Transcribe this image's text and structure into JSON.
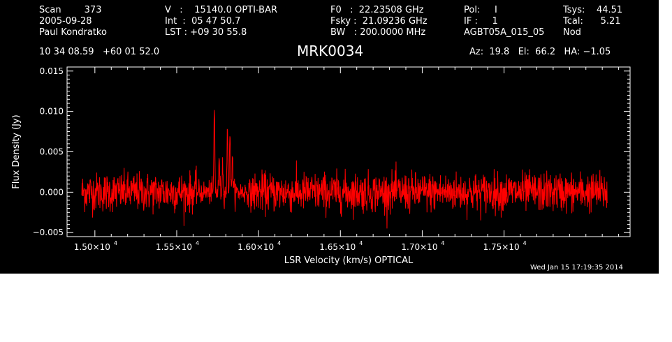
{
  "header": {
    "row1": [
      "Scan        373",
      "V   :    15140.0 OPTI-BAR",
      "F0   :  22.23508 GHz",
      "Pol:     I",
      "Tsys:    44.51"
    ],
    "row2": [
      "2005-09-28",
      "Int  :  05 47 50.7",
      "Fsky :  21.09236 GHz",
      "IF :     1",
      "Tcal:      5.21"
    ],
    "row3": [
      "Paul Kondratko",
      "LST : +09 30 55.8",
      "BW   : 200.0000 MHz",
      "AGBT05A_015_05",
      "Nod"
    ],
    "coords": "10 34 08.59   +60 01 52.0",
    "source": "MRK0034",
    "pointing": "Az:  19.8   El:  66.2   HA: −1.05"
  },
  "footer": {
    "timestamp": "Wed Jan 15 17:19:35 2014"
  },
  "colors": {
    "background": "#000000",
    "axes": "#ffffff",
    "series": "#ff0000"
  },
  "chart_data": {
    "type": "line",
    "title": "MRK0034",
    "xlabel": "LSR Velocity (km/s) OPTICAL",
    "ylabel": "Flux Density (Jy)",
    "xlim": [
      14830,
      18270
    ],
    "ylim": [
      -0.0055,
      0.0155
    ],
    "x_ticks": [
      15000,
      15500,
      16000,
      16500,
      17000,
      17500
    ],
    "x_tick_labels": [
      "1.50×10",
      "1.55×10",
      "1.60×10",
      "1.65×10",
      "1.70×10",
      "1.75×10"
    ],
    "x_tick_exponent": "4",
    "y_ticks": [
      -0.005,
      0.0,
      0.005,
      0.01,
      0.015
    ],
    "y_tick_labels": [
      "−0.005",
      "0.000",
      "0.005",
      "0.010",
      "0.015"
    ],
    "series": [
      {
        "x_range": [
          14920,
          18130
        ],
        "noise_rms": 0.0012,
        "features": [
          {
            "x": 15730,
            "peak": 0.0103
          },
          {
            "x": 15760,
            "peak": 0.0045
          },
          {
            "x": 15780,
            "peak": 0.0035
          },
          {
            "x": 15810,
            "peak": 0.0075
          },
          {
            "x": 15825,
            "peak": 0.008
          },
          {
            "x": 15840,
            "peak": 0.005
          }
        ]
      }
    ]
  }
}
